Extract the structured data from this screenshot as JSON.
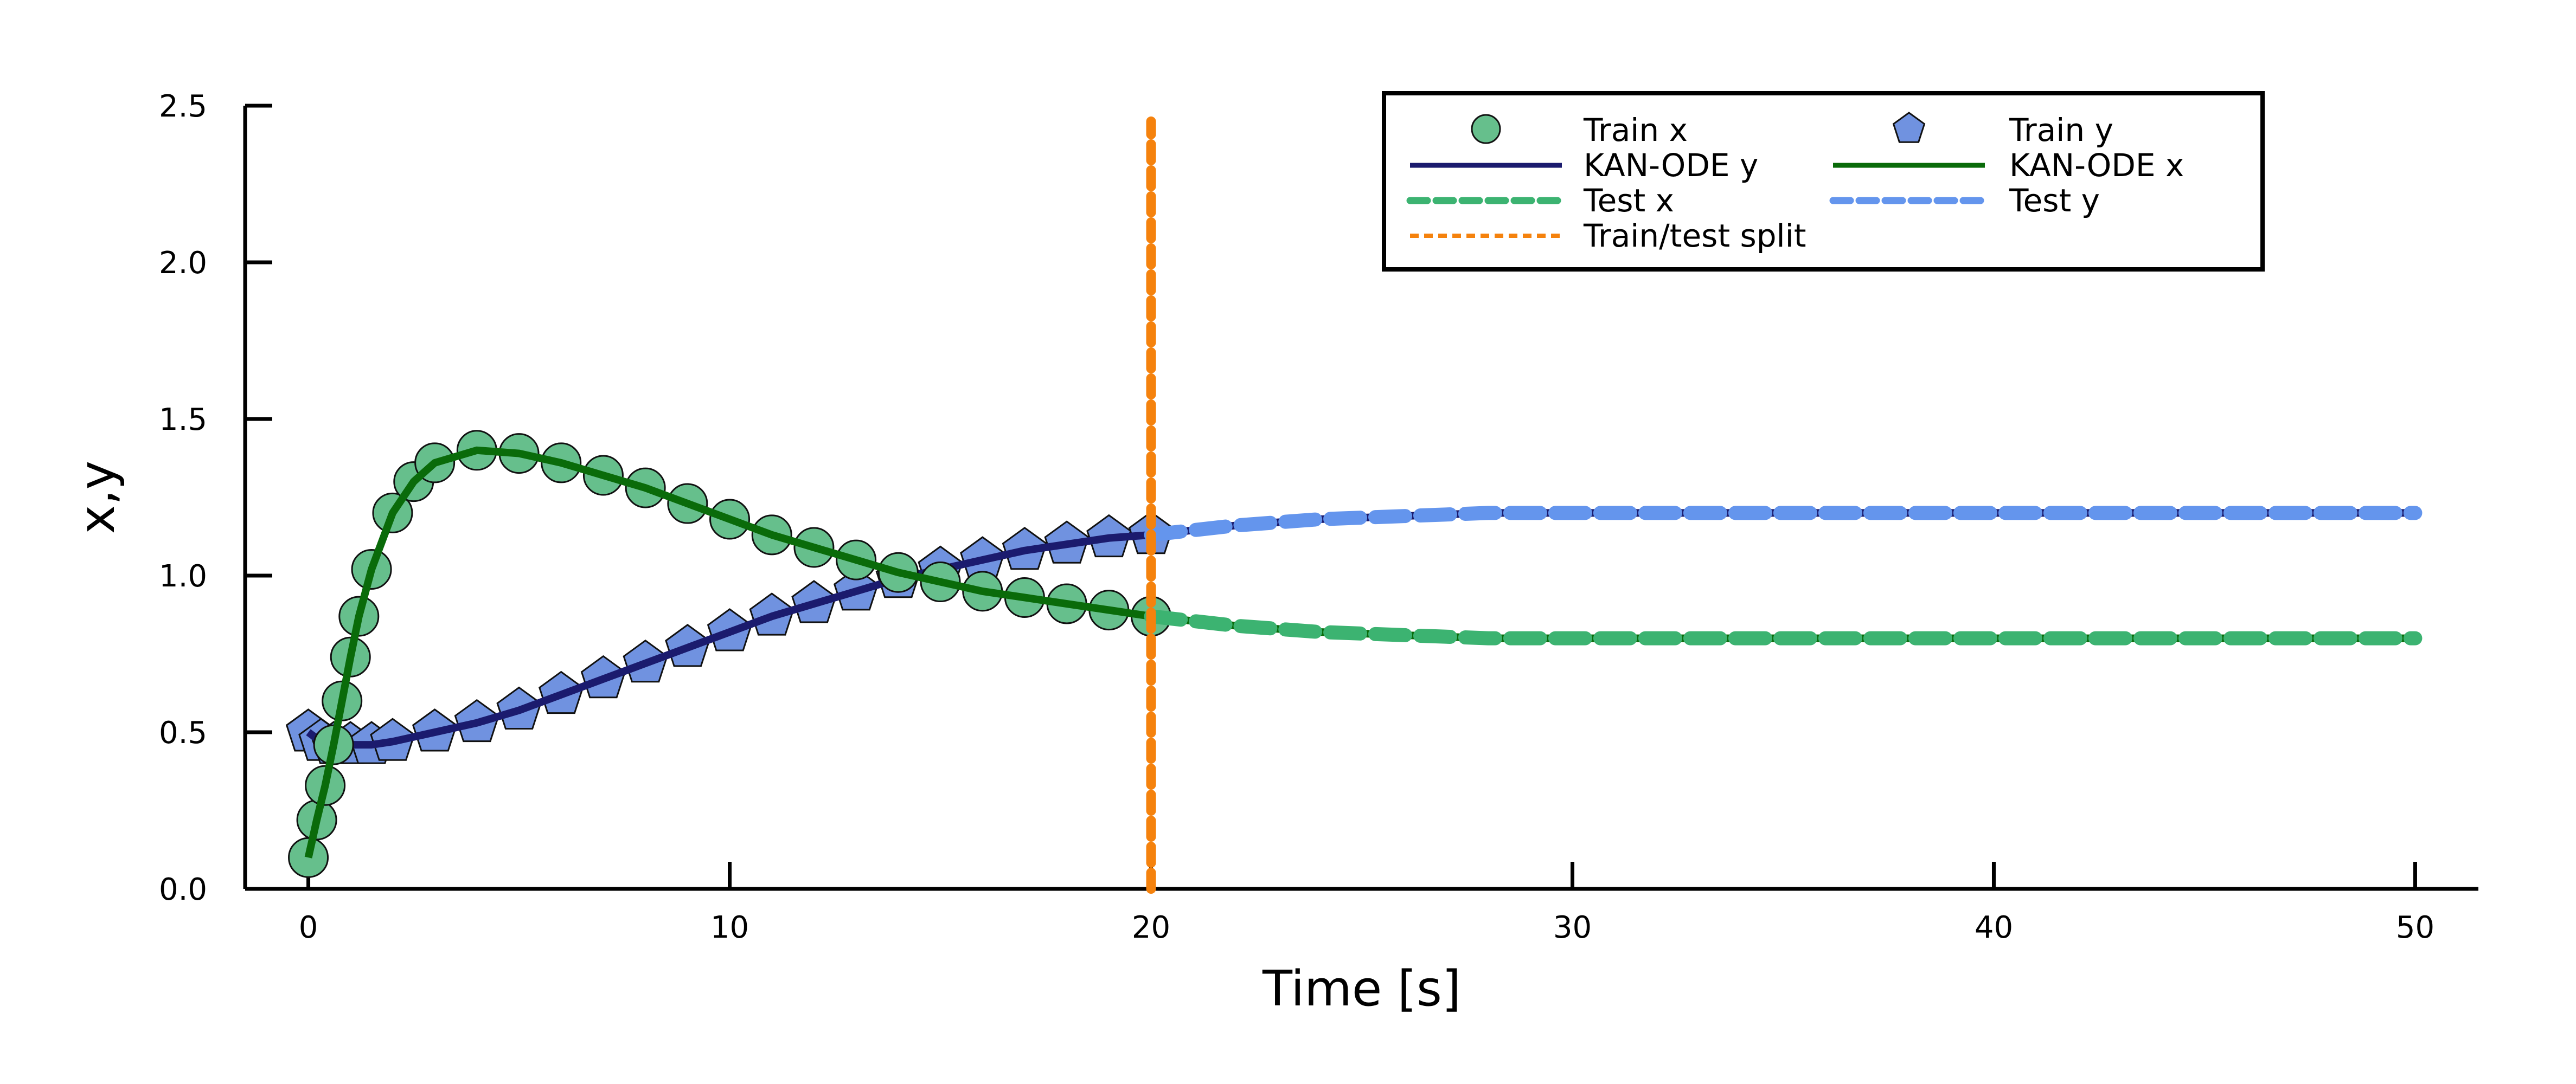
{
  "chart_data": {
    "type": "line",
    "title": "",
    "xlabel": "Time [s]",
    "ylabel": "x,y",
    "xlim": [
      -1.5,
      51.5
    ],
    "ylim": [
      0,
      2.5
    ],
    "xticks": [
      0,
      10,
      20,
      30,
      40,
      50
    ],
    "xtick_labels": [
      "0",
      "10",
      "20",
      "30",
      "40",
      "50"
    ],
    "yticks": [
      0,
      0.5,
      1,
      1.5,
      2,
      2.5
    ],
    "ytick_labels": [
      "0.0",
      "0.5",
      "1.0",
      "1.5",
      "2.0",
      "2.5"
    ],
    "grid": false,
    "legend_position": "top-right",
    "split_x": 20,
    "series": [
      {
        "name": "Train x",
        "kind": "markers",
        "marker": "circle",
        "color": "#66bf8c",
        "x": [
          0,
          0.2,
          0.4,
          0.6,
          0.8,
          1,
          1.2,
          1.5,
          2,
          2.5,
          3,
          4,
          5,
          6,
          7,
          8,
          9,
          10,
          11,
          12,
          13,
          14,
          15,
          16,
          17,
          18,
          19,
          20
        ],
        "y": [
          0.1,
          0.22,
          0.33,
          0.46,
          0.6,
          0.74,
          0.87,
          1.02,
          1.2,
          1.3,
          1.36,
          1.4,
          1.39,
          1.36,
          1.32,
          1.28,
          1.23,
          1.18,
          1.13,
          1.09,
          1.05,
          1.01,
          0.98,
          0.95,
          0.93,
          0.91,
          0.89,
          0.87
        ]
      },
      {
        "name": "Train y",
        "kind": "markers",
        "marker": "pentagon",
        "color": "#7092e0",
        "x": [
          0,
          0.3,
          0.6,
          1,
          1.5,
          2,
          3,
          4,
          5,
          6,
          7,
          8,
          9,
          10,
          11,
          12,
          13,
          14,
          15,
          16,
          17,
          18,
          19,
          20
        ],
        "y": [
          0.5,
          0.47,
          0.46,
          0.46,
          0.46,
          0.47,
          0.5,
          0.53,
          0.57,
          0.62,
          0.67,
          0.72,
          0.77,
          0.82,
          0.87,
          0.91,
          0.95,
          0.99,
          1.02,
          1.05,
          1.08,
          1.1,
          1.12,
          1.13
        ]
      },
      {
        "name": "KAN-ODE y",
        "kind": "line",
        "color": "#1b1b6e",
        "x": [
          0,
          0.3,
          0.6,
          1,
          1.5,
          2,
          3,
          4,
          5,
          6,
          7,
          8,
          9,
          10,
          11,
          12,
          13,
          14,
          15,
          16,
          17,
          18,
          19,
          20,
          22,
          24,
          26,
          28,
          30,
          35,
          40,
          45,
          50
        ],
        "y": [
          0.5,
          0.47,
          0.46,
          0.46,
          0.46,
          0.47,
          0.5,
          0.53,
          0.57,
          0.62,
          0.67,
          0.72,
          0.77,
          0.82,
          0.87,
          0.91,
          0.95,
          0.99,
          1.02,
          1.05,
          1.08,
          1.1,
          1.12,
          1.13,
          1.16,
          1.18,
          1.19,
          1.2,
          1.2,
          1.2,
          1.2,
          1.2,
          1.2
        ]
      },
      {
        "name": "KAN-ODE x",
        "kind": "line",
        "color": "#0a6b0a",
        "x": [
          0,
          0.2,
          0.4,
          0.6,
          0.8,
          1,
          1.2,
          1.5,
          2,
          2.5,
          3,
          4,
          5,
          6,
          7,
          8,
          9,
          10,
          11,
          12,
          13,
          14,
          15,
          16,
          17,
          18,
          19,
          20,
          22,
          24,
          26,
          28,
          30,
          35,
          40,
          45,
          50
        ],
        "y": [
          0.1,
          0.22,
          0.33,
          0.46,
          0.6,
          0.74,
          0.87,
          1.02,
          1.2,
          1.3,
          1.36,
          1.4,
          1.39,
          1.36,
          1.32,
          1.28,
          1.23,
          1.18,
          1.13,
          1.09,
          1.05,
          1.01,
          0.98,
          0.95,
          0.93,
          0.91,
          0.89,
          0.87,
          0.84,
          0.82,
          0.81,
          0.8,
          0.8,
          0.8,
          0.8,
          0.8,
          0.8
        ]
      },
      {
        "name": "Test x",
        "kind": "dashed",
        "color": "#3cb371",
        "x": [
          20,
          22,
          24,
          26,
          28,
          30,
          35,
          40,
          45,
          50
        ],
        "y": [
          0.87,
          0.84,
          0.82,
          0.81,
          0.8,
          0.8,
          0.8,
          0.8,
          0.8,
          0.8
        ]
      },
      {
        "name": "Test y",
        "kind": "dashed",
        "color": "#6495ed",
        "x": [
          20,
          22,
          24,
          26,
          28,
          30,
          35,
          40,
          45,
          50
        ],
        "y": [
          1.13,
          1.16,
          1.18,
          1.19,
          1.2,
          1.2,
          1.2,
          1.2,
          1.2,
          1.2
        ]
      },
      {
        "name": "Train/test split",
        "kind": "vline",
        "color": "#f5820d",
        "x": [
          20,
          20
        ],
        "y": [
          0,
          2.45
        ]
      }
    ]
  }
}
